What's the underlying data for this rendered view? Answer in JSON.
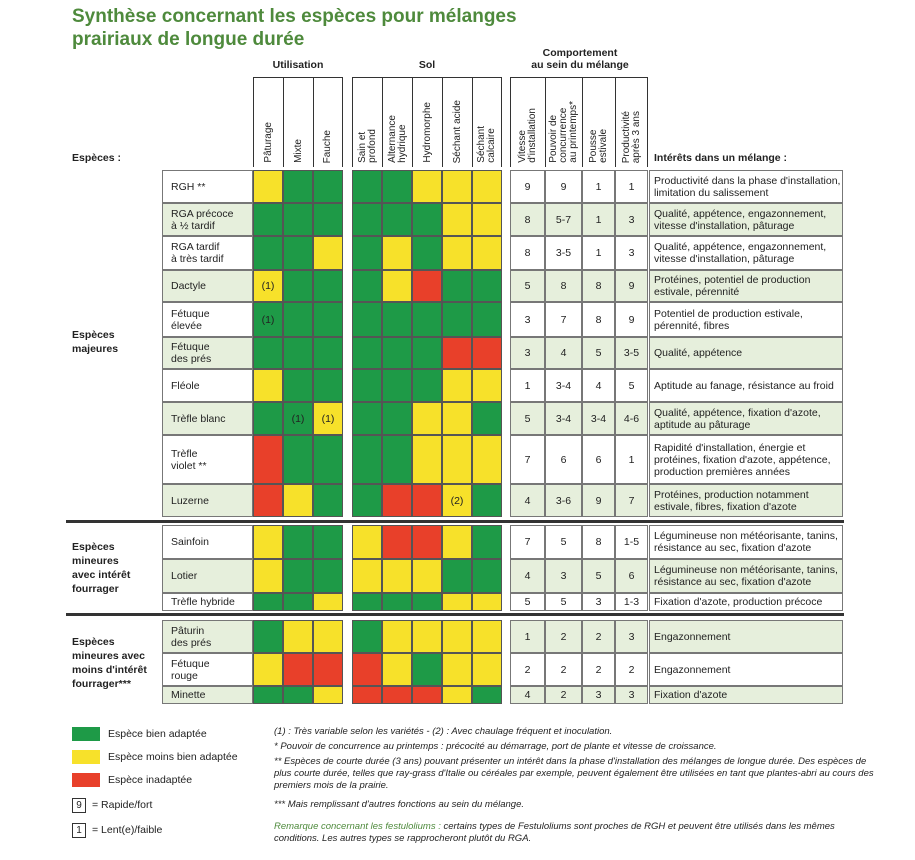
{
  "title": "Synthèse concernant les espèces pour mélanges\nprairiaux de longue durée",
  "groups": {
    "utilisation": "Utilisation",
    "sol": "Sol",
    "comportement": "Comportement\nau sein du mélange"
  },
  "headers": {
    "especes": "Espèces :",
    "interets": "Intérêts dans un mélange :",
    "util": [
      "Pâturage",
      "Mixte",
      "Fauche"
    ],
    "sol": [
      "Sain et\nprofond",
      "Alternance\nhydrique",
      "Hydromorphe",
      "Séchant acide",
      "Séchant\ncalcaire"
    ],
    "comp": [
      "Vitesse\nd'installation",
      "Pouvoir de\nconcurrence\nau printemps*",
      "Pousse\nestivale",
      "Productivité\naprès 3 ans"
    ]
  },
  "group_labels": [
    "Espèces\nmajeures",
    "Espèces\nmineures\navec intérêt\nfourrager",
    "Espèces\nmineures avec\nmoins d'intérêt\nfourrager***"
  ],
  "rows": [
    {
      "name": "RGH **",
      "shade": false,
      "u": [
        "y",
        "g",
        "g"
      ],
      "ul": [
        "",
        "",
        ""
      ],
      "s": [
        "g",
        "g",
        "y",
        "y",
        "y"
      ],
      "sl": [
        "",
        "",
        "",
        "",
        ""
      ],
      "c": [
        "9",
        "9",
        "1",
        "1"
      ],
      "i": "Productivité dans la phase d'installation,\nlimitation du salissement"
    },
    {
      "name": "RGA précoce\nà ½ tardif",
      "shade": true,
      "u": [
        "g",
        "g",
        "g"
      ],
      "ul": [
        "",
        "",
        ""
      ],
      "s": [
        "g",
        "g",
        "g",
        "y",
        "y"
      ],
      "sl": [
        "",
        "",
        "",
        "",
        ""
      ],
      "c": [
        "8",
        "5-7",
        "1",
        "3"
      ],
      "i": "Qualité, appétence, engazonnement,\nvitesse d'installation, pâturage"
    },
    {
      "name": "RGA tardif\nà très tardif",
      "shade": false,
      "u": [
        "g",
        "g",
        "y"
      ],
      "ul": [
        "",
        "",
        ""
      ],
      "s": [
        "g",
        "y",
        "g",
        "y",
        "y"
      ],
      "sl": [
        "",
        "",
        "",
        "",
        ""
      ],
      "c": [
        "8",
        "3-5",
        "1",
        "3"
      ],
      "i": "Qualité, appétence, engazonnement,\nvitesse d'installation, pâturage"
    },
    {
      "name": "Dactyle",
      "shade": true,
      "u": [
        "y",
        "g",
        "g"
      ],
      "ul": [
        "(1)",
        "",
        ""
      ],
      "s": [
        "g",
        "y",
        "r",
        "g",
        "g"
      ],
      "sl": [
        "",
        "",
        "",
        "",
        ""
      ],
      "c": [
        "5",
        "8",
        "8",
        "9"
      ],
      "i": "Protéines, potentiel de production\nestivale, pérennité"
    },
    {
      "name": "Fétuque\nélevée",
      "shade": false,
      "u": [
        "g",
        "g",
        "g"
      ],
      "ul": [
        "(1)",
        "",
        ""
      ],
      "s": [
        "g",
        "g",
        "g",
        "g",
        "g"
      ],
      "sl": [
        "",
        "",
        "",
        "",
        ""
      ],
      "c": [
        "3",
        "7",
        "8",
        "9"
      ],
      "i": "Potentiel de production estivale,\npérennité, fibres"
    },
    {
      "name": "Fétuque\ndes prés",
      "shade": true,
      "u": [
        "g",
        "g",
        "g"
      ],
      "ul": [
        "",
        "",
        ""
      ],
      "s": [
        "g",
        "g",
        "g",
        "r",
        "r"
      ],
      "sl": [
        "",
        "",
        "",
        "",
        ""
      ],
      "c": [
        "3",
        "4",
        "5",
        "3-5"
      ],
      "i": "Qualité, appétence"
    },
    {
      "name": "Fléole",
      "shade": false,
      "u": [
        "y",
        "g",
        "g"
      ],
      "ul": [
        "",
        "",
        ""
      ],
      "s": [
        "g",
        "g",
        "g",
        "y",
        "y"
      ],
      "sl": [
        "",
        "",
        "",
        "",
        ""
      ],
      "c": [
        "1",
        "3-4",
        "4",
        "5"
      ],
      "i": "Aptitude au fanage, résistance au froid"
    },
    {
      "name": "Trèfle blanc",
      "shade": true,
      "u": [
        "g",
        "g",
        "y"
      ],
      "ul": [
        "",
        "(1)",
        "(1)"
      ],
      "s": [
        "g",
        "g",
        "y",
        "y",
        "g"
      ],
      "sl": [
        "",
        "",
        "",
        "",
        ""
      ],
      "c": [
        "5",
        "3-4",
        "3-4",
        "4-6"
      ],
      "i": "Qualité, appétence, fixation d'azote,\naptitude au pâturage"
    },
    {
      "name": "Trèfle\nviolet **",
      "shade": false,
      "u": [
        "r",
        "g",
        "g"
      ],
      "ul": [
        "",
        "",
        ""
      ],
      "s": [
        "g",
        "g",
        "y",
        "y",
        "y"
      ],
      "sl": [
        "",
        "",
        "",
        "",
        ""
      ],
      "c": [
        "7",
        "6",
        "6",
        "1"
      ],
      "i": "Rapidité d'installation, énergie et\nprotéines, fixation d'azote, appétence,\nproduction premières années"
    },
    {
      "name": "Luzerne",
      "shade": true,
      "u": [
        "r",
        "y",
        "g"
      ],
      "ul": [
        "",
        "",
        ""
      ],
      "s": [
        "g",
        "r",
        "r",
        "y",
        "g"
      ],
      "sl": [
        "",
        "",
        "",
        "(2)",
        ""
      ],
      "c": [
        "4",
        "3-6",
        "9",
        "7"
      ],
      "i": "Protéines, production notamment\nestivale, fibres, fixation d'azote"
    },
    {
      "name": "Sainfoin",
      "shade": false,
      "u": [
        "y",
        "g",
        "g"
      ],
      "ul": [
        "",
        "",
        ""
      ],
      "s": [
        "y",
        "r",
        "r",
        "y",
        "g"
      ],
      "sl": [
        "",
        "",
        "",
        "",
        ""
      ],
      "c": [
        "7",
        "5",
        "8",
        "1-5"
      ],
      "i": "Légumineuse non météorisante, tanins,\nrésistance au sec, fixation d'azote"
    },
    {
      "name": "Lotier",
      "shade": true,
      "u": [
        "y",
        "g",
        "g"
      ],
      "ul": [
        "",
        "",
        ""
      ],
      "s": [
        "y",
        "y",
        "y",
        "g",
        "g"
      ],
      "sl": [
        "",
        "",
        "",
        "",
        ""
      ],
      "c": [
        "4",
        "3",
        "5",
        "6"
      ],
      "i": "Légumineuse non météorisante, tanins,\nrésistance au sec, fixation d'azote"
    },
    {
      "name": "Trèfle hybride",
      "shade": false,
      "u": [
        "g",
        "g",
        "y"
      ],
      "ul": [
        "",
        "",
        ""
      ],
      "s": [
        "g",
        "g",
        "g",
        "y",
        "y"
      ],
      "sl": [
        "",
        "",
        "",
        "",
        ""
      ],
      "c": [
        "5",
        "5",
        "3",
        "1-3"
      ],
      "i": "Fixation d'azote, production précoce"
    },
    {
      "name": "Pâturin\ndes prés",
      "shade": true,
      "u": [
        "g",
        "y",
        "y"
      ],
      "ul": [
        "",
        "",
        ""
      ],
      "s": [
        "g",
        "y",
        "y",
        "y",
        "y"
      ],
      "sl": [
        "",
        "",
        "",
        "",
        ""
      ],
      "c": [
        "1",
        "2",
        "2",
        "3"
      ],
      "i": "Engazonnement"
    },
    {
      "name": "Fétuque\nrouge",
      "shade": false,
      "u": [
        "y",
        "r",
        "r"
      ],
      "ul": [
        "",
        "",
        ""
      ],
      "s": [
        "r",
        "y",
        "g",
        "y",
        "y"
      ],
      "sl": [
        "",
        "",
        "",
        "",
        ""
      ],
      "c": [
        "2",
        "2",
        "2",
        "2"
      ],
      "i": "Engazonnement"
    },
    {
      "name": "Minette",
      "shade": true,
      "u": [
        "g",
        "g",
        "y"
      ],
      "ul": [
        "",
        "",
        ""
      ],
      "s": [
        "r",
        "r",
        "r",
        "y",
        "g"
      ],
      "sl": [
        "",
        "",
        "",
        "",
        ""
      ],
      "c": [
        "4",
        "2",
        "3",
        "3"
      ],
      "i": "Fixation d'azote"
    }
  ],
  "legend": {
    "green": "Espèce bien adaptée",
    "yellow": "Espèce moins bien adaptée",
    "red": "Espèce inadaptée",
    "fast_box": "9",
    "fast": "= Rapide/fort",
    "slow_box": "1",
    "slow": "= Lent(e)/faible"
  },
  "notes": {
    "n1": "(1) : Très variable selon les variétés - (2) : Avec chaulage fréquent et inoculation.",
    "n2": "* Pouvoir de concurrence au printemps : précocité au démarrage, port de plante et vitesse de croissance.",
    "n3": "** Espèces de courte durée (3 ans) pouvant présenter un intérêt dans la phase d'installation des mélanges de longue durée. Des espèces de plus courte durée, telles que ray-grass d'Italie ou céréales par exemple, peuvent également être utilisées en tant que plantes-abri au cours des premiers mois de la prairie.",
    "n4": "*** Mais remplissant d'autres fonctions au sein du mélange.",
    "remark_lead": "Remarque concernant les festuloliums :",
    "remark": " certains types de Festuloliums sont proches de RGH et peuvent être utilisés dans les mêmes conditions. Les autres types se rapprocheront plutôt du RGA."
  },
  "colors": {
    "green": "#1e9a47",
    "yellow": "#f7e12a",
    "red": "#e8402a",
    "title": "#4e8a3c"
  }
}
